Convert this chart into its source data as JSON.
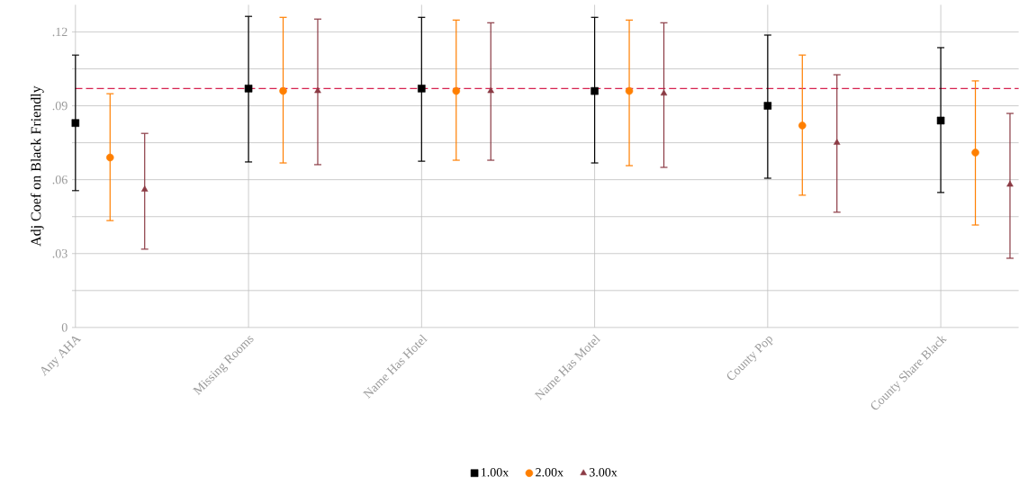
{
  "chart_data": {
    "type": "scatter",
    "ylabel": "Adj Coef on Black Friendly",
    "categories": [
      "Any AHA",
      "Missing Rooms",
      "Name Has Hotel",
      "Name Has Motel",
      "County Pop",
      "County Share Black"
    ],
    "series": [
      {
        "name": "1.00x",
        "color": "#000000",
        "marker": "square",
        "values": [
          0.083,
          0.097,
          0.097,
          0.096,
          0.09,
          0.084
        ],
        "errors": [
          [
            0.0555,
            0.1106
          ],
          [
            0.0672,
            0.1263
          ],
          [
            0.0675,
            0.1259
          ],
          [
            0.0668,
            0.1259
          ],
          [
            0.0606,
            0.1187
          ],
          [
            0.0548,
            0.1136
          ]
        ]
      },
      {
        "name": "2.00x",
        "color": "#ff7f00",
        "marker": "circle",
        "values": [
          0.069,
          0.096,
          0.096,
          0.096,
          0.082,
          0.071
        ],
        "errors": [
          [
            0.0434,
            0.0949
          ],
          [
            0.0668,
            0.1259
          ],
          [
            0.0679,
            0.1248
          ],
          [
            0.0657,
            0.1248
          ],
          [
            0.0537,
            0.1106
          ],
          [
            0.0416,
            0.1001
          ]
        ]
      },
      {
        "name": "3.00x",
        "color": "#8b3a44",
        "marker": "triangle",
        "values": [
          0.056,
          0.096,
          0.096,
          0.095,
          0.075,
          0.058
        ],
        "errors": [
          [
            0.0318,
            0.0788
          ],
          [
            0.0661,
            0.1252
          ],
          [
            0.0679,
            0.1237
          ],
          [
            0.065,
            0.1237
          ],
          [
            0.0468,
            0.1026
          ],
          [
            0.0281,
            0.0869
          ]
        ]
      }
    ],
    "ylim": [
      0,
      0.131
    ],
    "yticks": [
      {
        "value": 0,
        "label": "0"
      },
      {
        "value": 0.015,
        "label": null
      },
      {
        "value": 0.03,
        "label": ".03"
      },
      {
        "value": 0.045,
        "label": null
      },
      {
        "value": 0.06,
        "label": ".06"
      },
      {
        "value": 0.075,
        "label": null
      },
      {
        "value": 0.09,
        "label": ".09"
      },
      {
        "value": 0.105,
        "label": null
      },
      {
        "value": 0.12,
        "label": ".12"
      }
    ],
    "ref_lines": [
      {
        "axis": "y",
        "value": 0.097,
        "color": "#d6224f",
        "line_style": "dashed"
      }
    ],
    "grid": true,
    "legend": "bottom"
  }
}
